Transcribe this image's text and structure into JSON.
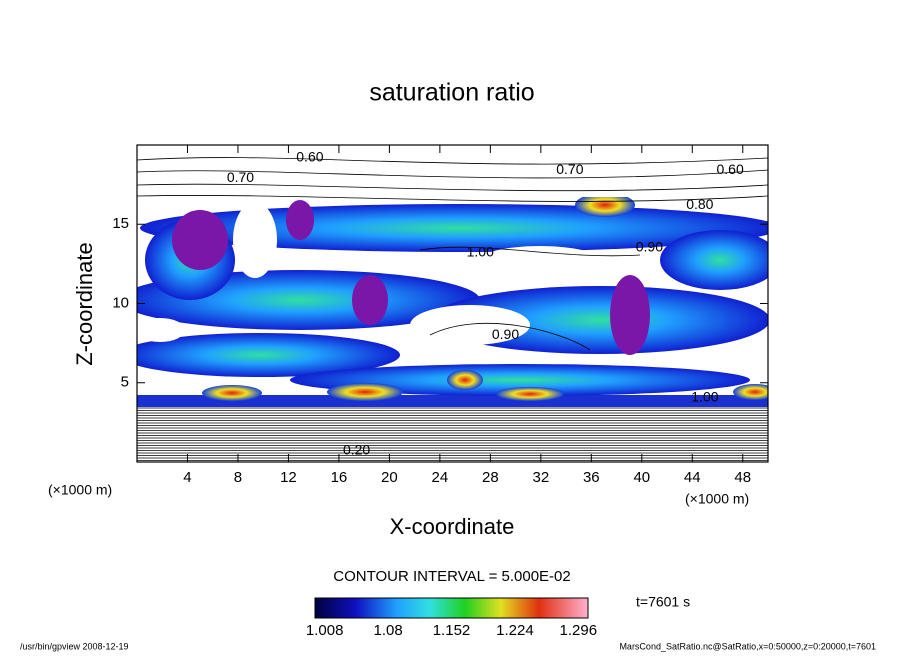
{
  "chart_data": {
    "type": "contour",
    "title": "saturation ratio",
    "xlabel": "X-coordinate",
    "ylabel": "Z-coordinate",
    "xunit": "(×1000 m)",
    "xlim": [
      0,
      50
    ],
    "xticks": [
      4,
      8,
      12,
      16,
      20,
      24,
      28,
      32,
      36,
      40,
      44,
      48
    ],
    "ylim": [
      0,
      20
    ],
    "yticks": [
      5,
      10,
      15
    ],
    "contour_interval": "CONTOUR INTERVAL = 5.000E-02",
    "contour_labels": [
      {
        "label": "0.60",
        "x": 13.7,
        "z": 19.2
      },
      {
        "label": "0.70",
        "x": 8.2,
        "z": 17.9
      },
      {
        "label": "0.70",
        "x": 34.3,
        "z": 18.4
      },
      {
        "label": "0.60",
        "x": 47,
        "z": 18.4
      },
      {
        "label": "0.80",
        "x": 44.6,
        "z": 16.2
      },
      {
        "label": "1.00",
        "x": 27.2,
        "z": 13.2
      },
      {
        "label": "0.90",
        "x": 40.6,
        "z": 13.5
      },
      {
        "label": "0.90",
        "x": 29.2,
        "z": 8.0
      },
      {
        "label": "1.00",
        "x": 45,
        "z": 4.05
      },
      {
        "label": "0.20",
        "x": 17.4,
        "z": 0.7
      }
    ],
    "colorbar": {
      "lim": [
        0.997,
        1.307
      ],
      "ticks": [
        1.008,
        1.08,
        1.152,
        1.224,
        1.296
      ]
    },
    "time_label": "t=7601 s",
    "footer_left": "/usr/bin/gpview  2008-12-19",
    "footer_right": "MarsCond_SatRatio.nc@SatRatio,x=0:50000,z=0:20000,t=7601"
  }
}
